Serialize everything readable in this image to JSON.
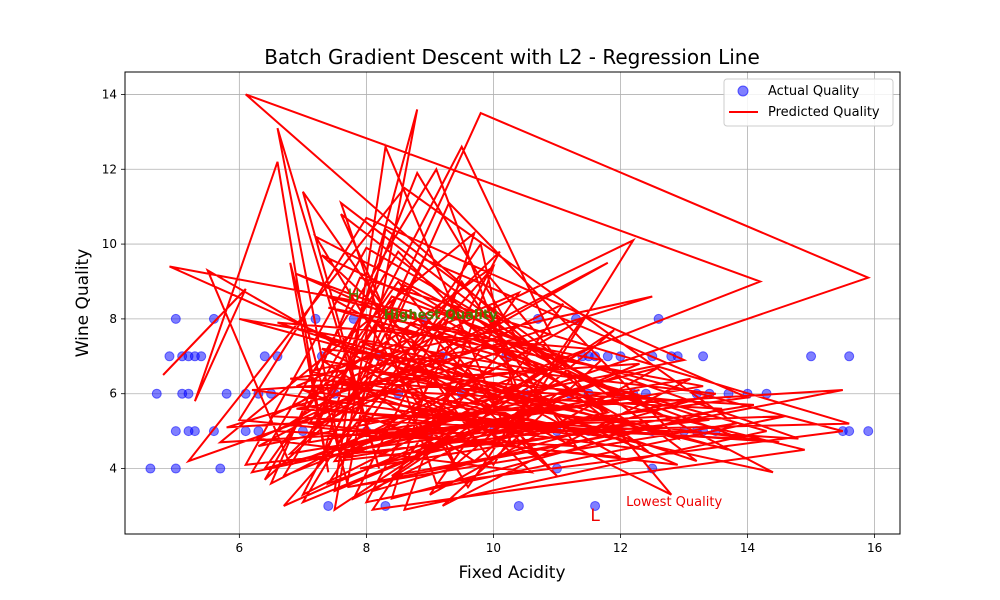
{
  "chart_data": {
    "type": "scatter",
    "title": "Batch Gradient Descent with L2 - Regression Line",
    "xlabel": "Fixed Acidity",
    "ylabel": "Wine Quality",
    "xlim": [
      4.2,
      16.4
    ],
    "ylim": [
      2.25,
      14.6
    ],
    "xticks": [
      6,
      8,
      10,
      12,
      14,
      16
    ],
    "yticks": [
      4,
      6,
      8,
      10,
      12,
      14
    ],
    "grid": true,
    "legend_position": "top-right",
    "series": [
      {
        "name": "Actual Quality",
        "kind": "scatter",
        "color": "#0000ff",
        "points": [
          [
            4.6,
            4
          ],
          [
            5.0,
            4
          ],
          [
            5.7,
            4
          ],
          [
            5.0,
            5
          ],
          [
            5.2,
            5
          ],
          [
            5.3,
            5
          ],
          [
            5.6,
            5
          ],
          [
            6.1,
            5
          ],
          [
            6.3,
            5
          ],
          [
            4.7,
            6
          ],
          [
            5.1,
            6
          ],
          [
            5.2,
            6
          ],
          [
            5.8,
            6
          ],
          [
            6.1,
            6
          ],
          [
            6.3,
            6
          ],
          [
            6.5,
            6
          ],
          [
            4.9,
            7
          ],
          [
            5.1,
            7
          ],
          [
            5.2,
            7
          ],
          [
            5.3,
            7
          ],
          [
            5.4,
            7
          ],
          [
            6.4,
            7
          ],
          [
            6.6,
            7
          ],
          [
            5.0,
            8
          ],
          [
            5.6,
            8
          ],
          [
            7.2,
            8
          ],
          [
            7.8,
            8
          ],
          [
            8.9,
            8
          ],
          [
            10.7,
            8
          ],
          [
            11.3,
            8
          ],
          [
            12.6,
            8
          ],
          [
            7.4,
            3
          ],
          [
            8.3,
            3
          ],
          [
            10.4,
            3
          ],
          [
            11.6,
            3
          ],
          [
            7.0,
            5
          ],
          [
            7.5,
            6
          ],
          [
            8.0,
            5
          ],
          [
            8.5,
            6
          ],
          [
            9.0,
            5
          ],
          [
            9.5,
            6
          ],
          [
            10.0,
            5
          ],
          [
            10.5,
            6
          ],
          [
            11.0,
            5
          ],
          [
            7.3,
            7
          ],
          [
            8.2,
            7
          ],
          [
            9.2,
            7
          ],
          [
            10.2,
            7
          ],
          [
            11.4,
            7
          ],
          [
            11.5,
            7
          ],
          [
            11.6,
            7
          ],
          [
            11.8,
            7
          ],
          [
            12.0,
            7
          ],
          [
            12.5,
            7
          ],
          [
            12.8,
            7
          ],
          [
            12.9,
            7
          ],
          [
            13.3,
            7
          ],
          [
            15.0,
            7
          ],
          [
            15.6,
            7
          ],
          [
            11.2,
            6
          ],
          [
            11.5,
            6
          ],
          [
            12.0,
            6
          ],
          [
            12.2,
            6
          ],
          [
            12.4,
            6
          ],
          [
            13.2,
            6
          ],
          [
            13.4,
            6
          ],
          [
            13.7,
            6
          ],
          [
            14.0,
            6
          ],
          [
            14.3,
            6
          ],
          [
            11.5,
            5
          ],
          [
            12.0,
            5
          ],
          [
            12.5,
            5
          ],
          [
            13.0,
            5
          ],
          [
            13.2,
            5
          ],
          [
            13.3,
            5
          ],
          [
            13.5,
            5
          ],
          [
            15.5,
            5
          ],
          [
            15.6,
            5
          ],
          [
            15.9,
            5
          ],
          [
            11.0,
            4
          ],
          [
            12.5,
            4
          ]
        ]
      },
      {
        "name": "Predicted Quality",
        "kind": "line",
        "color": "#ff0000",
        "points": [
          [
            4.8,
            6.5
          ],
          [
            6.1,
            8.8
          ],
          [
            5.3,
            5.8
          ],
          [
            6.6,
            12.2
          ],
          [
            7.4,
            3.9
          ],
          [
            6.8,
            9.5
          ],
          [
            7.7,
            3.6
          ],
          [
            8.8,
            13.6
          ],
          [
            7.3,
            4.2
          ],
          [
            9.8,
            13.5
          ],
          [
            15.9,
            9.1
          ],
          [
            7.6,
            4.3
          ],
          [
            6.6,
            13.1
          ],
          [
            8.2,
            4.0
          ],
          [
            7.0,
            11.4
          ],
          [
            10.0,
            4.1
          ],
          [
            12.2,
            10.1
          ],
          [
            6.5,
            5.4
          ],
          [
            13.9,
            4.8
          ],
          [
            6.9,
            9.2
          ],
          [
            11.8,
            5.5
          ],
          [
            6.1,
            14.0
          ],
          [
            14.2,
            9.0
          ],
          [
            6.8,
            4.1
          ],
          [
            5.5,
            9.3
          ],
          [
            10.3,
            4.6
          ],
          [
            8.3,
            12.6
          ],
          [
            7.5,
            3.4
          ],
          [
            12.3,
            6.8
          ],
          [
            6.2,
            6.1
          ],
          [
            11.3,
            4.9
          ],
          [
            8.5,
            9.8
          ],
          [
            6.4,
            3.7
          ],
          [
            9.4,
            8.3
          ],
          [
            14.4,
            3.9
          ],
          [
            7.1,
            6.6
          ],
          [
            12.5,
            8.6
          ],
          [
            5.8,
            5.1
          ],
          [
            15.5,
            6.1
          ],
          [
            7.7,
            3.5
          ],
          [
            13.8,
            5.2
          ],
          [
            8.6,
            11.5
          ],
          [
            5.2,
            4.2
          ],
          [
            10.9,
            7.6
          ],
          [
            9.5,
            12.6
          ],
          [
            7.2,
            5.1
          ],
          [
            11.8,
            9.5
          ],
          [
            6.3,
            4.6
          ],
          [
            13.0,
            6.9
          ],
          [
            8.0,
            10.7
          ],
          [
            6.0,
            5.3
          ],
          [
            12.0,
            4.3
          ],
          [
            7.4,
            8.6
          ],
          [
            15.5,
            5.0
          ],
          [
            9.1,
            3.6
          ],
          [
            7.6,
            11.1
          ],
          [
            11.2,
            6.4
          ],
          [
            6.7,
            3.0
          ],
          [
            9.9,
            9.2
          ],
          [
            12.8,
            3.3
          ],
          [
            7.9,
            7.4
          ],
          [
            14.9,
            4.5
          ],
          [
            8.1,
            2.9
          ],
          [
            10.4,
            8.7
          ],
          [
            6.9,
            6.2
          ],
          [
            13.6,
            5.6
          ],
          [
            8.4,
            3.2
          ],
          [
            9.7,
            10.3
          ],
          [
            5.7,
            4.7
          ],
          [
            12.7,
            5.4
          ],
          [
            7.3,
            9.7
          ],
          [
            11.0,
            3.8
          ],
          [
            8.7,
            8.2
          ],
          [
            4.9,
            9.4
          ],
          [
            10.6,
            5.1
          ],
          [
            9.1,
            12.0
          ],
          [
            6.2,
            3.9
          ],
          [
            12.3,
            6.1
          ],
          [
            7.8,
            4.5
          ],
          [
            14.0,
            5.9
          ],
          [
            8.9,
            9.6
          ],
          [
            7.0,
            3.3
          ],
          [
            11.5,
            7.2
          ],
          [
            6.6,
            7.9
          ],
          [
            13.2,
            4.2
          ],
          [
            8.3,
            10.4
          ],
          [
            7.5,
            2.9
          ],
          [
            10.8,
            6.6
          ],
          [
            6.0,
            8.0
          ],
          [
            12.9,
            4.8
          ],
          [
            9.3,
            11.1
          ],
          [
            7.7,
            5.0
          ],
          [
            14.6,
            5.4
          ],
          [
            8.0,
            3.1
          ],
          [
            10.1,
            9.8
          ],
          [
            6.8,
            4.4
          ],
          [
            12.1,
            5.9
          ],
          [
            7.2,
            10.2
          ],
          [
            9.6,
            3.5
          ],
          [
            11.4,
            8.0
          ],
          [
            8.2,
            4.9
          ],
          [
            15.6,
            5.2
          ],
          [
            7.9,
            9.1
          ],
          [
            6.5,
            3.6
          ],
          [
            10.5,
            7.1
          ],
          [
            8.8,
            11.9
          ],
          [
            7.1,
            4.7
          ],
          [
            13.1,
            6.4
          ],
          [
            9.2,
            3.0
          ],
          [
            11.7,
            6.9
          ],
          [
            7.4,
            8.3
          ],
          [
            14.3,
            5.0
          ],
          [
            8.6,
            2.9
          ],
          [
            10.0,
            9.4
          ],
          [
            6.9,
            5.7
          ],
          [
            12.4,
            4.5
          ],
          [
            7.6,
            10.8
          ],
          [
            9.4,
            4.1
          ],
          [
            11.9,
            7.7
          ],
          [
            8.1,
            3.4
          ],
          [
            13.5,
            6.0
          ],
          [
            7.3,
            7.2
          ],
          [
            10.7,
            4.3
          ],
          [
            8.5,
            9.0
          ],
          [
            6.4,
            4.0
          ],
          [
            12.6,
            6.7
          ],
          [
            9.0,
            3.3
          ],
          [
            11.1,
            8.4
          ],
          [
            7.7,
            5.5
          ],
          [
            14.8,
            4.8
          ],
          [
            8.4,
            8.6
          ],
          [
            6.7,
            3.8
          ],
          [
            10.3,
            6.2
          ],
          [
            9.8,
            10.0
          ],
          [
            7.5,
            4.2
          ],
          [
            13.4,
            5.3
          ],
          [
            8.7,
            7.9
          ],
          [
            7.0,
            3.1
          ],
          [
            11.6,
            6.3
          ],
          [
            8.0,
            9.9
          ],
          [
            6.1,
            4.1
          ],
          [
            12.2,
            5.2
          ],
          [
            9.2,
            8.0
          ],
          [
            7.8,
            3.2
          ],
          [
            10.9,
            5.8
          ],
          [
            7.2,
            7.6
          ],
          [
            13.7,
            4.5
          ],
          [
            8.3,
            6.8
          ],
          [
            6.6,
            5.0
          ],
          [
            11.3,
            4.6
          ],
          [
            9.5,
            9.0
          ],
          [
            7.4,
            3.6
          ],
          [
            12.0,
            6.5
          ],
          [
            8.8,
            4.4
          ],
          [
            10.2,
            7.3
          ],
          [
            6.8,
            6.4
          ],
          [
            14.1,
            5.7
          ],
          [
            7.9,
            4.0
          ],
          [
            11.8,
            5.5
          ],
          [
            8.6,
            8.9
          ],
          [
            7.1,
            5.2
          ],
          [
            12.9,
            4.1
          ],
          [
            9.0,
            6.9
          ],
          [
            6.3,
            4.8
          ],
          [
            10.6,
            3.9
          ],
          [
            8.2,
            7.8
          ],
          [
            13.3,
            6.2
          ],
          [
            7.6,
            4.6
          ],
          [
            11.0,
            6.0
          ],
          [
            9.7,
            4.2
          ],
          [
            7.3,
            6.9
          ],
          [
            12.5,
            5.1
          ],
          [
            8.4,
            3.8
          ],
          [
            10.8,
            6.7
          ],
          [
            6.9,
            5.6
          ],
          [
            14.5,
            4.7
          ],
          [
            8.9,
            5.9
          ],
          [
            7.7,
            4.3
          ],
          [
            11.4,
            5.3
          ],
          [
            8.1,
            6.6
          ],
          [
            13.0,
            5.8
          ],
          [
            9.3,
            4.5
          ],
          [
            7.0,
            6.1
          ],
          [
            12.3,
            4.7
          ],
          [
            8.5,
            5.7
          ],
          [
            10.4,
            5.0
          ],
          [
            7.5,
            6.3
          ],
          [
            11.7,
            4.9
          ],
          [
            9.1,
            5.4
          ],
          [
            8.0,
            6.0
          ]
        ]
      }
    ],
    "annotations": [
      {
        "marker": "H",
        "text": "Highest Quality",
        "x": 7.8,
        "y": 8.5,
        "color": "#4d7a00"
      },
      {
        "marker": "L",
        "text": "Lowest Quality",
        "x": 11.6,
        "y": 2.6,
        "color": "#ee0000"
      }
    ]
  }
}
